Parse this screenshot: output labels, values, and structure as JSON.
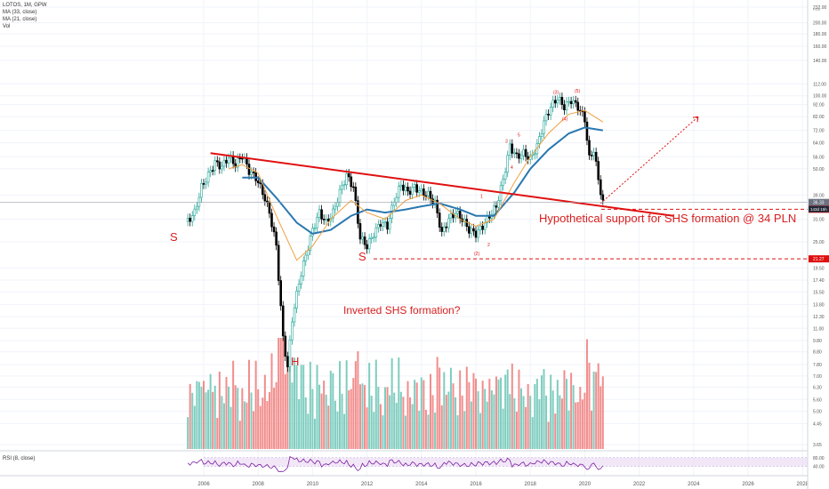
{
  "header": {
    "symbol_line": "LOTOS, 1M, GPW",
    "ma1": "MA (33, close)",
    "ma2": "MA (21, close)",
    "vol": "Vol"
  },
  "rsi": {
    "label": "RSI (8, close)"
  },
  "annotations": {
    "s_left": "S",
    "s_right": "S",
    "h": "H",
    "inverted": "Inverted SHS formation?",
    "support": "Hypothetical support for SHS formation @ 34 PLN",
    "wave_labels": [
      "1",
      "2",
      "3",
      "4",
      "5",
      "(2)",
      "(3)",
      "(4)",
      "(5)"
    ]
  },
  "colors": {
    "up": "#26a69a",
    "down": "#000000",
    "vol_up": "#7fcdbf",
    "vol_down": "#f28d8d",
    "ma33": "#2a78b0",
    "ma21": "#f0a040",
    "trendline": "#e01010",
    "rsi_line": "#7b1fa2",
    "rsi_band": "#e9d7f2"
  },
  "chart_data": {
    "type": "candlestick",
    "title": "LOTOS, 1M, GPW",
    "price_scale": "log",
    "price_unit": "PLN",
    "y_ticks": [
      232.0,
      200.0,
      180.0,
      160.0,
      140.0,
      112.0,
      100.0,
      92.0,
      82.0,
      72.0,
      64.0,
      56.0,
      50.0,
      39.0,
      31.0,
      25.0,
      19.5,
      17.4,
      15.5,
      13.8,
      12.3,
      11.0,
      9.8,
      8.8,
      7.8,
      7.0,
      6.3,
      5.6,
      5.0,
      4.45,
      3.65
    ],
    "x_ticks": [
      "2006",
      "2008",
      "2010",
      "2012",
      "2014",
      "2016",
      "2018",
      "2020",
      "2022",
      "2024",
      "2026",
      "2028"
    ],
    "price_labels": [
      {
        "value": "36.33",
        "style": "grey"
      },
      {
        "value": "34.06",
        "style": "red"
      },
      {
        "value": "21.27",
        "style": "red"
      }
    ],
    "current_price": "36.33",
    "countdown": "143d 15h",
    "support_levels": [
      34.06,
      21.27
    ],
    "series": [
      {
        "name": "LOTOS",
        "points": [
          [
            "2005-06",
            30.5
          ],
          [
            "2005-09",
            33
          ],
          [
            "2005-12",
            42
          ],
          [
            "2006-03",
            47
          ],
          [
            "2006-06",
            53
          ],
          [
            "2006-09",
            51
          ],
          [
            "2006-12",
            56
          ],
          [
            "2007-03",
            52
          ],
          [
            "2007-06",
            57
          ],
          [
            "2007-09",
            49
          ],
          [
            "2007-12",
            46
          ],
          [
            "2008-03",
            40
          ],
          [
            "2008-06",
            33
          ],
          [
            "2008-09",
            24
          ],
          [
            "2008-12",
            10
          ],
          [
            "2009-02",
            7.6
          ],
          [
            "2009-04",
            12
          ],
          [
            "2009-07",
            17
          ],
          [
            "2009-10",
            22
          ],
          [
            "2010-01",
            28
          ],
          [
            "2010-04",
            33
          ],
          [
            "2010-07",
            30
          ],
          [
            "2010-10",
            33
          ],
          [
            "2011-01",
            40
          ],
          [
            "2011-04",
            47
          ],
          [
            "2011-07",
            42
          ],
          [
            "2011-10",
            26
          ],
          [
            "2012-01",
            24
          ],
          [
            "2012-04",
            27
          ],
          [
            "2012-07",
            30
          ],
          [
            "2012-10",
            29
          ],
          [
            "2013-01",
            37
          ],
          [
            "2013-04",
            43
          ],
          [
            "2013-07",
            40
          ],
          [
            "2013-10",
            42
          ],
          [
            "2014-01",
            40
          ],
          [
            "2014-04",
            39
          ],
          [
            "2014-07",
            36
          ],
          [
            "2014-10",
            27
          ],
          [
            "2015-01",
            31
          ],
          [
            "2015-04",
            33
          ],
          [
            "2015-07",
            31
          ],
          [
            "2015-10",
            28
          ],
          [
            "2016-01",
            27
          ],
          [
            "2016-04",
            29
          ],
          [
            "2016-07",
            32
          ],
          [
            "2016-10",
            35
          ],
          [
            "2017-01",
            45
          ],
          [
            "2017-04",
            62
          ],
          [
            "2017-07",
            56
          ],
          [
            "2017-10",
            58
          ],
          [
            "2018-01",
            55
          ],
          [
            "2018-04",
            62
          ],
          [
            "2018-07",
            78
          ],
          [
            "2018-10",
            90
          ],
          [
            "2019-01",
            98
          ],
          [
            "2019-04",
            90
          ],
          [
            "2019-07",
            96
          ],
          [
            "2019-10",
            90
          ],
          [
            "2020-01",
            80
          ],
          [
            "2020-03",
            55
          ],
          [
            "2020-05",
            60
          ],
          [
            "2020-07",
            45
          ],
          [
            "2020-09",
            36.33
          ]
        ]
      },
      {
        "name": "MA (33, close)",
        "points": [
          [
            "2007-06",
            46
          ],
          [
            "2008-01",
            46
          ],
          [
            "2008-09",
            38
          ],
          [
            "2009-06",
            30
          ],
          [
            "2010-01",
            27
          ],
          [
            "2010-09",
            28
          ],
          [
            "2011-06",
            32
          ],
          [
            "2012-01",
            34
          ],
          [
            "2012-09",
            33
          ],
          [
            "2013-06",
            34
          ],
          [
            "2014-01",
            35
          ],
          [
            "2014-09",
            36
          ],
          [
            "2015-06",
            34
          ],
          [
            "2016-01",
            32
          ],
          [
            "2016-09",
            32
          ],
          [
            "2017-06",
            40
          ],
          [
            "2018-01",
            50
          ],
          [
            "2018-09",
            60
          ],
          [
            "2019-06",
            70
          ],
          [
            "2020-01",
            74
          ],
          [
            "2020-09",
            72
          ]
        ]
      },
      {
        "name": "MA (21, close)",
        "points": [
          [
            "2006-12",
            50
          ],
          [
            "2007-06",
            52
          ],
          [
            "2008-01",
            48
          ],
          [
            "2008-09",
            32
          ],
          [
            "2009-06",
            21
          ],
          [
            "2010-01",
            24
          ],
          [
            "2010-09",
            31
          ],
          [
            "2011-06",
            37
          ],
          [
            "2012-01",
            33
          ],
          [
            "2012-09",
            31
          ],
          [
            "2013-06",
            37
          ],
          [
            "2014-01",
            39
          ],
          [
            "2014-09",
            36
          ],
          [
            "2015-06",
            31
          ],
          [
            "2016-01",
            29
          ],
          [
            "2016-09",
            31
          ],
          [
            "2017-06",
            44
          ],
          [
            "2018-01",
            56
          ],
          [
            "2018-09",
            70
          ],
          [
            "2019-06",
            84
          ],
          [
            "2020-01",
            87
          ],
          [
            "2020-09",
            78
          ]
        ]
      }
    ],
    "trendline": {
      "from": [
        "2006-04",
        58
      ],
      "to": [
        "2023-04",
        32
      ]
    },
    "projection": {
      "from": [
        "2020-08",
        36
      ],
      "to": [
        "2024-03",
        82
      ]
    },
    "volume": {
      "shown": true
    },
    "rsi_ticks": [
      80.0,
      40.0
    ]
  }
}
